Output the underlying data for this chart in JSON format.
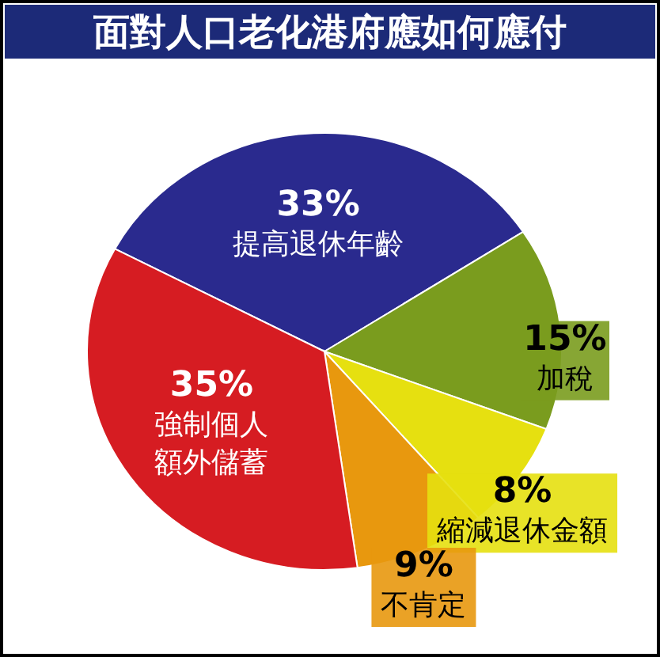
{
  "chart_data": {
    "type": "pie",
    "title": "面對人口老化港府應如何應付",
    "categories": [
      "提高退休年齡",
      "加稅",
      "縮減退休金額",
      "不肯定",
      "強制個人額外儲蓄"
    ],
    "values": [
      33,
      15,
      8,
      9,
      35
    ],
    "value_labels": [
      "33%",
      "15%",
      "8%",
      "9%",
      "35%"
    ],
    "colors": [
      "#2a2a8e",
      "#7a9c1e",
      "#e6e010",
      "#e8980e",
      "#d61c22"
    ]
  }
}
